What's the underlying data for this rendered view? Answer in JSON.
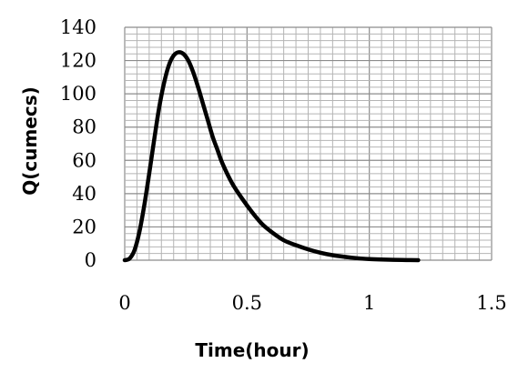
{
  "chart_data": {
    "type": "line",
    "title": "",
    "xlabel": "Time(hour)",
    "ylabel": "Q(cumecs)",
    "xlim": [
      0,
      1.5
    ],
    "ylim": [
      0,
      140
    ],
    "xticks": [
      0,
      0.5,
      1,
      1.5
    ],
    "yticks": [
      0,
      20,
      40,
      60,
      80,
      100,
      120,
      140
    ],
    "xtick_labels": [
      "0",
      "0.5",
      "1",
      "1.5"
    ],
    "ytick_labels": [
      "0",
      "20",
      "40",
      "60",
      "80",
      "100",
      "120",
      "140"
    ],
    "grid": "major and minor",
    "legend": "none",
    "line_color": "#000000",
    "series": [
      {
        "x": [
          0,
          0.02,
          0.04,
          0.06,
          0.08,
          0.1,
          0.12,
          0.14,
          0.16,
          0.18,
          0.2,
          0.22,
          0.24,
          0.26,
          0.28,
          0.3,
          0.32,
          0.34,
          0.36,
          0.38,
          0.4,
          0.44,
          0.48,
          0.52,
          0.56,
          0.6,
          0.65,
          0.7,
          0.75,
          0.8,
          0.85,
          0.9,
          0.95,
          1.0,
          1.05,
          1.1,
          1.15,
          1.2
        ],
        "y": [
          0,
          1,
          6,
          17,
          33,
          52,
          72,
          91,
          106,
          117,
          123,
          125,
          124,
          120,
          113,
          104,
          94,
          84,
          74,
          66,
          58,
          46,
          37,
          29,
          22,
          17,
          12,
          9,
          6.5,
          4.5,
          3,
          2,
          1.2,
          0.7,
          0.4,
          0.2,
          0.1,
          0
        ]
      }
    ]
  }
}
